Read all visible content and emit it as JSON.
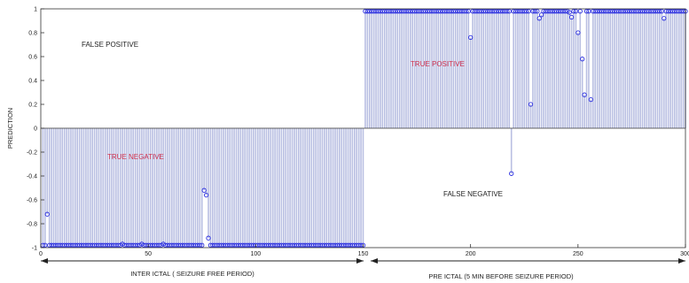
{
  "chart_data": {
    "type": "stem",
    "xlim": [
      0,
      300
    ],
    "ylim": [
      -1,
      1
    ],
    "ylabel": "PREDICTION",
    "x_ticks": [
      "0",
      "50",
      "100",
      "150",
      "200",
      "250",
      "300"
    ],
    "y_ticks": [
      "1",
      "0.8",
      "0.6",
      "0.4",
      "0.2",
      "0",
      "-0.2",
      "-0.4",
      "-0.6",
      "-0.8",
      "-1"
    ],
    "x_tick_values": [
      0,
      50,
      100,
      150,
      200,
      250,
      300
    ],
    "y_tick_values": [
      1,
      0.8,
      0.6,
      0.4,
      0.2,
      0,
      -0.2,
      -0.4,
      -0.6,
      -0.8,
      -1
    ],
    "region_labels": {
      "false_positive": "FALSE POSITIVE",
      "true_positive": "TRUE POSITIVE",
      "true_negative": "TRUE NEGATIVE",
      "false_negative": "FALSE NEGATIVE"
    },
    "period_labels": {
      "interictal": "INTER ICTAL ( SEIZURE FREE PERIOD)",
      "preictal": "PRE ICTAL (5 MIN BEFORE SEIZURE  PERIOD)"
    },
    "split_x": 150,
    "n_points": 300,
    "default_value_interictal": -0.98,
    "default_value_preictal": 0.98,
    "exceptions": [
      {
        "x": 3,
        "y": -0.72
      },
      {
        "x": 38,
        "y": -0.97
      },
      {
        "x": 47,
        "y": -0.97
      },
      {
        "x": 57,
        "y": -0.97
      },
      {
        "x": 76,
        "y": -0.52
      },
      {
        "x": 77,
        "y": -0.56
      },
      {
        "x": 78,
        "y": -0.92
      },
      {
        "x": 200,
        "y": 0.76
      },
      {
        "x": 219,
        "y": -0.38
      },
      {
        "x": 228,
        "y": 0.2
      },
      {
        "x": 232,
        "y": 0.92
      },
      {
        "x": 233,
        "y": 0.95
      },
      {
        "x": 240,
        "y": 0.98
      },
      {
        "x": 246,
        "y": 0.97
      },
      {
        "x": 247,
        "y": 0.93
      },
      {
        "x": 250,
        "y": 0.8
      },
      {
        "x": 252,
        "y": 0.58
      },
      {
        "x": 253,
        "y": 0.28
      },
      {
        "x": 256,
        "y": 0.24
      },
      {
        "x": 259,
        "y": 0.98
      },
      {
        "x": 290,
        "y": 0.92
      }
    ],
    "colors": {
      "stem": "#b9bfe2",
      "marker": "#2b2fe0",
      "axis": "#333333",
      "true_label": "#d0314e",
      "false_label": "#222222"
    }
  }
}
